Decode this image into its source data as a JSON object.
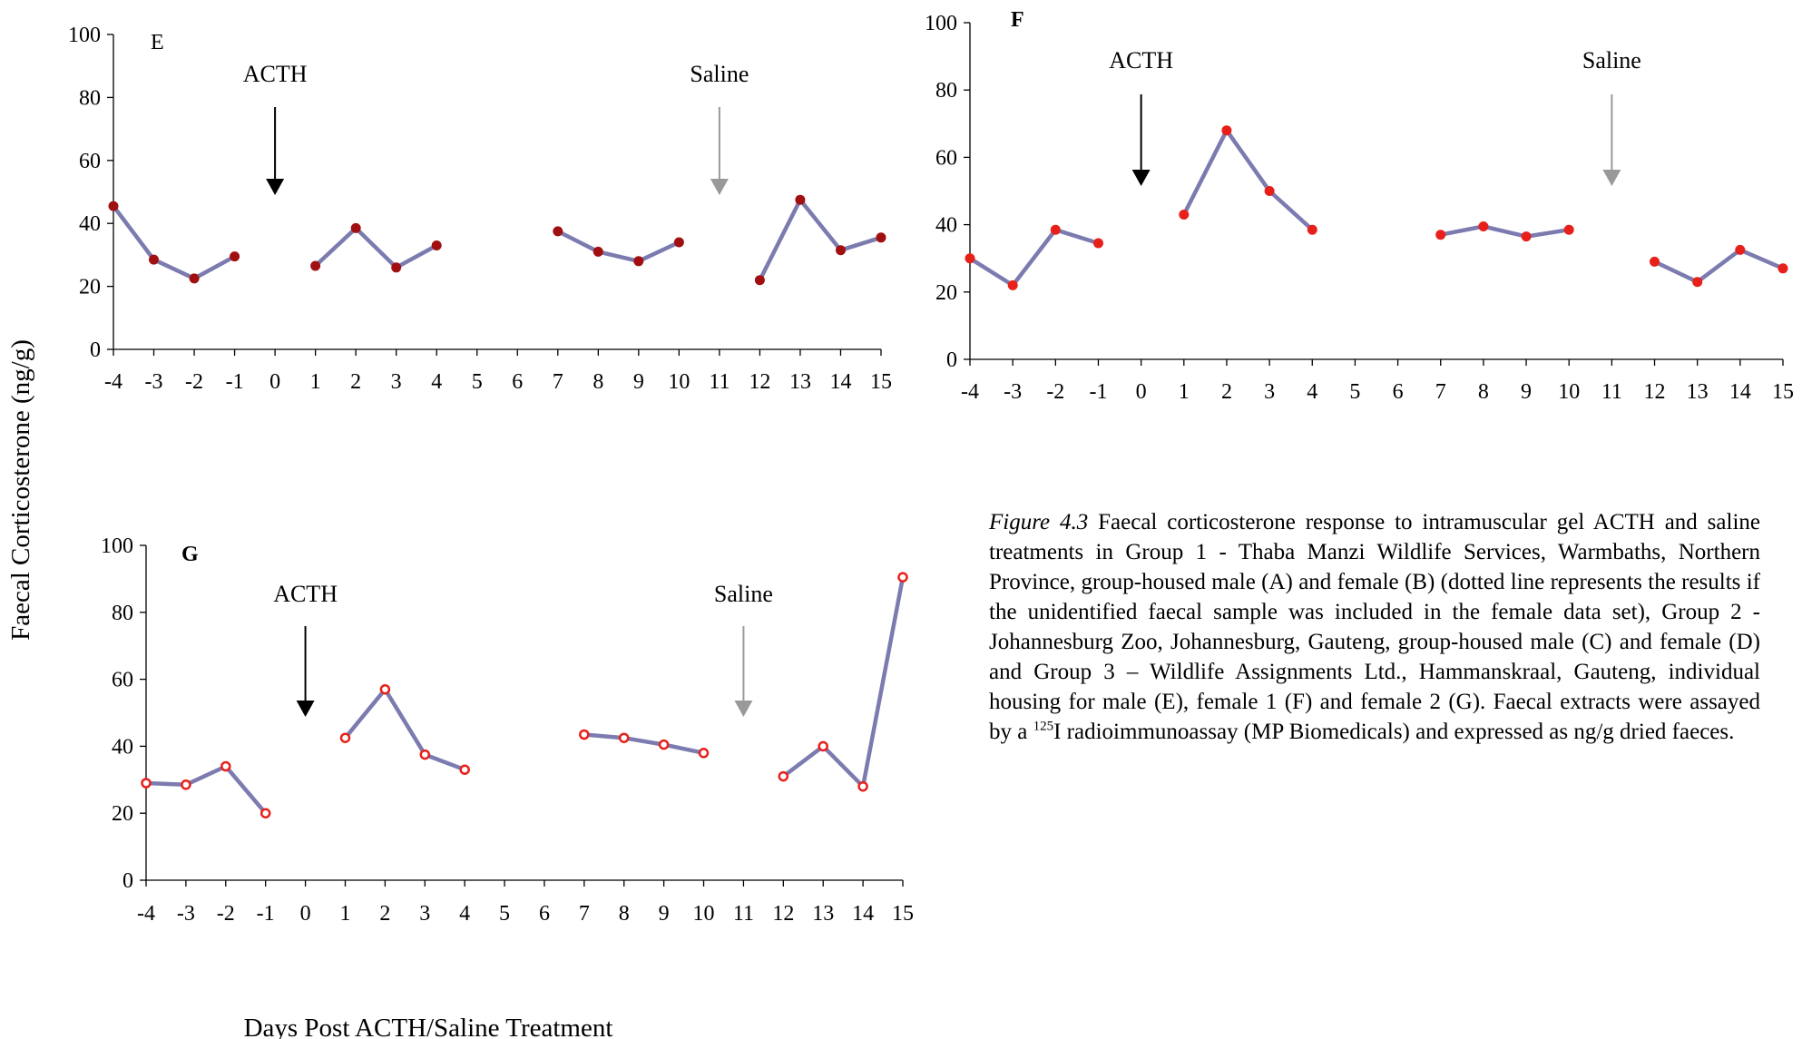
{
  "ylabel": "Faecal Corticosterone (ng/g)",
  "xlabel": "Days Post ACTH/Saline Treatment",
  "caption": {
    "figure_ref": "Figure 4.3",
    "text_before_sup": " Faecal corticosterone response to intramuscular gel ACTH and saline treatments in Group 1 - Thaba Manzi Wildlife Services, Warmbaths, Northern Province, group-housed male (A) and female (B) (dotted line represents the results if the unidentified faecal sample was included in the female data set), Group 2 - Johannesburg Zoo, Johannesburg, Gauteng, group-housed male (C) and female (D) and Group 3 – Wildlife Assignments Ltd., Hammanskraal, Gauteng, individual housing for male (E), female 1 (F) and female 2 (G). Faecal extracts were assayed by a ",
    "superscript": "125",
    "text_after_sup": "I radioimmunoassay (MP Biomedicals) and expressed as ng/g dried faeces."
  },
  "colors": {
    "line": "#7b7bb0",
    "marker_dark": "#a01010",
    "marker_red": "#e8201a",
    "acth_arrow": "#000000",
    "saline_arrow": "#999999"
  },
  "chart_data": [
    {
      "type": "line",
      "panel": "E",
      "xlim": [
        -4,
        15
      ],
      "ylim": [
        0,
        100
      ],
      "x_ticks": [
        -4,
        -3,
        -2,
        -1,
        0,
        1,
        2,
        3,
        4,
        5,
        6,
        7,
        8,
        9,
        10,
        11,
        12,
        13,
        14,
        15
      ],
      "y_ticks": [
        0,
        20,
        40,
        60,
        80,
        100
      ],
      "segments": [
        [
          [
            -4,
            45.5
          ],
          [
            -3,
            28.5
          ],
          [
            -2,
            22.5
          ],
          [
            -1,
            29.5
          ]
        ],
        [
          [
            1,
            26.5
          ],
          [
            2,
            38.5
          ],
          [
            3,
            26.0
          ],
          [
            4,
            33.0
          ]
        ],
        [
          [
            7,
            37.5
          ],
          [
            8,
            31.0
          ],
          [
            9,
            28.0
          ],
          [
            10,
            34.0
          ]
        ],
        [
          [
            12,
            22.0
          ],
          [
            13,
            47.5
          ],
          [
            14,
            31.5
          ],
          [
            15,
            35.5
          ]
        ]
      ],
      "marker": "filled-dark",
      "annotations": [
        {
          "text": "ACTH",
          "x": 0,
          "arrow_color": "#000000"
        },
        {
          "text": "Saline",
          "x": 11,
          "arrow_color": "#999999"
        }
      ]
    },
    {
      "type": "line",
      "panel": "F",
      "xlim": [
        -4,
        15
      ],
      "ylim": [
        0,
        100
      ],
      "x_ticks": [
        -4,
        -3,
        -2,
        -1,
        0,
        1,
        2,
        3,
        4,
        5,
        6,
        7,
        8,
        9,
        10,
        11,
        12,
        13,
        14,
        15
      ],
      "y_ticks": [
        0,
        20,
        40,
        60,
        80,
        100
      ],
      "segments": [
        [
          [
            -4,
            30.0
          ],
          [
            -3,
            22.0
          ],
          [
            -2,
            38.5
          ],
          [
            -1,
            34.5
          ]
        ],
        [
          [
            1,
            43.0
          ],
          [
            2,
            68.0
          ],
          [
            3,
            50.0
          ],
          [
            4,
            38.5
          ]
        ],
        [
          [
            7,
            37.0
          ],
          [
            8,
            39.5
          ],
          [
            9,
            36.5
          ],
          [
            10,
            38.5
          ]
        ],
        [
          [
            12,
            29.0
          ],
          [
            13,
            23.0
          ],
          [
            14,
            32.5
          ],
          [
            15,
            27.0
          ]
        ]
      ],
      "marker": "filled-red",
      "annotations": [
        {
          "text": "ACTH",
          "x": 0,
          "arrow_color": "#000000"
        },
        {
          "text": "Saline",
          "x": 11,
          "arrow_color": "#999999"
        }
      ]
    },
    {
      "type": "line",
      "panel": "G",
      "xlim": [
        -4,
        15
      ],
      "ylim": [
        0,
        100
      ],
      "x_ticks": [
        -4,
        -3,
        -2,
        -1,
        0,
        1,
        2,
        3,
        4,
        5,
        6,
        7,
        8,
        9,
        10,
        11,
        12,
        13,
        14,
        15
      ],
      "y_ticks": [
        0,
        20,
        40,
        60,
        80,
        100
      ],
      "segments": [
        [
          [
            -4,
            29.0
          ],
          [
            -3,
            28.5
          ],
          [
            -2,
            34.0
          ],
          [
            -1,
            20.0
          ]
        ],
        [
          [
            1,
            42.5
          ],
          [
            2,
            57.0
          ],
          [
            3,
            37.5
          ],
          [
            4,
            33.0
          ]
        ],
        [
          [
            7,
            43.5
          ],
          [
            8,
            42.5
          ],
          [
            9,
            40.5
          ],
          [
            10,
            38.0
          ]
        ],
        [
          [
            12,
            31.0
          ],
          [
            13,
            40.0
          ],
          [
            14,
            28.0
          ],
          [
            15,
            90.5
          ]
        ]
      ],
      "marker": "hollow-red",
      "annotations": [
        {
          "text": "ACTH",
          "x": 0,
          "arrow_color": "#000000"
        },
        {
          "text": "Saline",
          "x": 11,
          "arrow_color": "#999999"
        }
      ]
    }
  ]
}
